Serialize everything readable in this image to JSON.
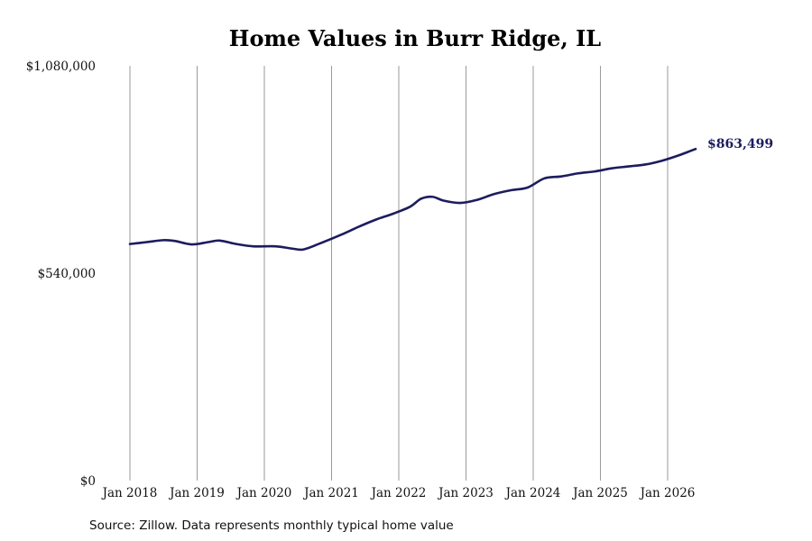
{
  "chart_data": {
    "type": "line",
    "title": "Home Values in Burr Ridge, IL",
    "xlabel": "",
    "ylabel": "",
    "ylim": [
      0,
      1080000
    ],
    "y_ticks": [
      {
        "value": 0,
        "label": "$0"
      },
      {
        "value": 540000,
        "label": "$540,000"
      },
      {
        "value": 1080000,
        "label": "$1,080,000"
      }
    ],
    "x_ticks": [
      {
        "value": "2018-01",
        "label": "Jan 2018"
      },
      {
        "value": "2019-01",
        "label": "Jan 2019"
      },
      {
        "value": "2020-01",
        "label": "Jan 2020"
      },
      {
        "value": "2021-01",
        "label": "Jan 2021"
      },
      {
        "value": "2022-01",
        "label": "Jan 2022"
      },
      {
        "value": "2023-01",
        "label": "Jan 2023"
      },
      {
        "value": "2024-01",
        "label": "Jan 2024"
      },
      {
        "value": "2025-01",
        "label": "Jan 2025"
      },
      {
        "value": "2026-01",
        "label": "Jan 2026"
      }
    ],
    "x_range": [
      "2018-01",
      "2026-06"
    ],
    "grid": "vertical",
    "legend": "none",
    "series": [
      {
        "color": "#1c1c5e",
        "points": [
          {
            "x": "2018-01",
            "y": 616000
          },
          {
            "x": "2018-04",
            "y": 621000
          },
          {
            "x": "2018-07",
            "y": 626000
          },
          {
            "x": "2018-09",
            "y": 624000
          },
          {
            "x": "2018-12",
            "y": 615000
          },
          {
            "x": "2019-03",
            "y": 621000
          },
          {
            "x": "2019-05",
            "y": 625000
          },
          {
            "x": "2019-08",
            "y": 616000
          },
          {
            "x": "2019-11",
            "y": 610000
          },
          {
            "x": "2020-03",
            "y": 610000
          },
          {
            "x": "2020-06",
            "y": 604000
          },
          {
            "x": "2020-08",
            "y": 602000
          },
          {
            "x": "2020-11",
            "y": 618000
          },
          {
            "x": "2021-03",
            "y": 642000
          },
          {
            "x": "2021-06",
            "y": 662000
          },
          {
            "x": "2021-09",
            "y": 680000
          },
          {
            "x": "2021-12",
            "y": 695000
          },
          {
            "x": "2022-03",
            "y": 713000
          },
          {
            "x": "2022-05",
            "y": 734000
          },
          {
            "x": "2022-07",
            "y": 739000
          },
          {
            "x": "2022-09",
            "y": 729000
          },
          {
            "x": "2022-12",
            "y": 723000
          },
          {
            "x": "2023-03",
            "y": 731000
          },
          {
            "x": "2023-06",
            "y": 746000
          },
          {
            "x": "2023-09",
            "y": 756000
          },
          {
            "x": "2023-12",
            "y": 763000
          },
          {
            "x": "2024-03",
            "y": 787000
          },
          {
            "x": "2024-06",
            "y": 792000
          },
          {
            "x": "2024-09",
            "y": 800000
          },
          {
            "x": "2024-12",
            "y": 805000
          },
          {
            "x": "2025-03",
            "y": 813000
          },
          {
            "x": "2025-06",
            "y": 818000
          },
          {
            "x": "2025-09",
            "y": 823000
          },
          {
            "x": "2025-12",
            "y": 833000
          },
          {
            "x": "2026-03",
            "y": 847000
          },
          {
            "x": "2026-06",
            "y": 863499
          }
        ]
      }
    ],
    "annotations": [
      {
        "x": "2026-06",
        "y": 863499,
        "text": "$863,499",
        "color": "#1c1c5e"
      }
    ]
  },
  "source_note": "Source: Zillow. Data represents monthly typical home value"
}
